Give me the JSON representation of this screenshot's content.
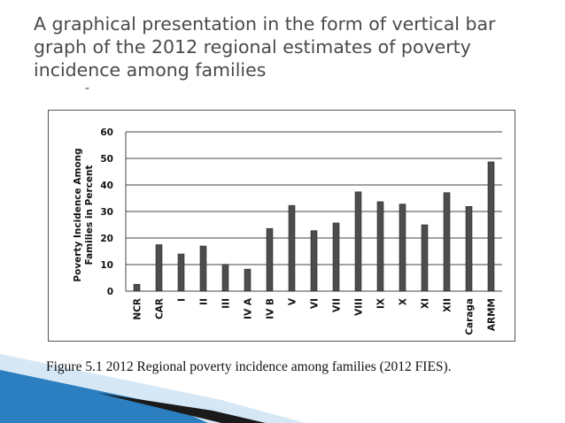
{
  "slide": {
    "title": "A graphical presentation in the form of vertical bar graph of the 2012 regional estimates of poverty incidence among families",
    "stray_mark": "-",
    "caption": "Figure 5.1 2012 Regional poverty incidence among families (2012 FIES).",
    "colors": {
      "title": "#4a4a4a",
      "bar": "#4d4d4d",
      "grid": "#444444",
      "accent_blue": "#2b7fc0",
      "accent_light_blue": "#bcd9f0"
    }
  },
  "chart_data": {
    "type": "bar",
    "title": "",
    "xlabel": "",
    "ylabel": "Poverty Incidence Among Families in Percent",
    "ylim": [
      0,
      60
    ],
    "yticks": [
      0,
      10,
      20,
      30,
      40,
      50,
      60
    ],
    "grid": true,
    "legend": "none",
    "categories": [
      "NCR",
      "CAR",
      "I",
      "II",
      "III",
      "IV A",
      "IV B",
      "V",
      "VI",
      "VII",
      "VIII",
      "IX",
      "X",
      "XI",
      "XII",
      "Caraga",
      "ARMM"
    ],
    "values": [
      2.6,
      17.5,
      14.0,
      17.0,
      10.1,
      8.3,
      23.6,
      32.3,
      22.8,
      25.7,
      37.4,
      33.7,
      32.8,
      25.0,
      37.1,
      31.9,
      48.7
    ]
  }
}
